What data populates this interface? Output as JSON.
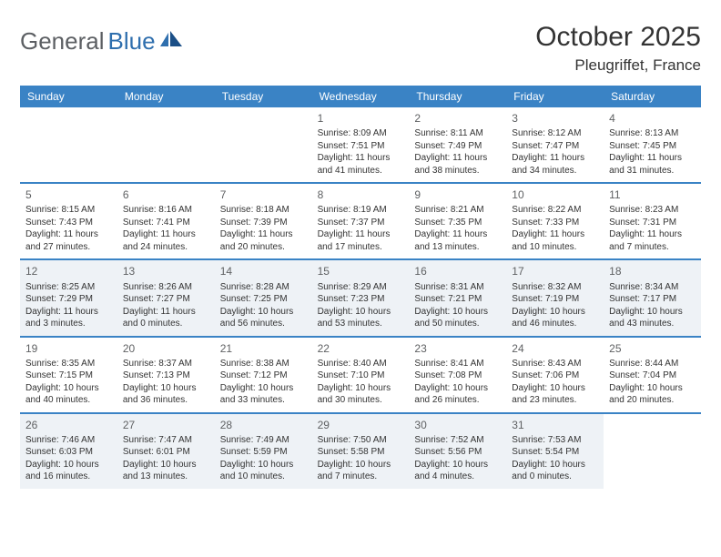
{
  "brand": {
    "part1": "General",
    "part2": "Blue"
  },
  "title": "October 2025",
  "location": "Pleugriffet, France",
  "colors": {
    "header_bg": "#3a83c5",
    "header_text": "#ffffff",
    "rule": "#3a83c5",
    "dim_bg": "#eef2f6",
    "text": "#333333",
    "logo_gray": "#5c5f63",
    "logo_blue": "#2f6fae"
  },
  "day_names": [
    "Sunday",
    "Monday",
    "Tuesday",
    "Wednesday",
    "Thursday",
    "Friday",
    "Saturday"
  ],
  "weeks": [
    [
      {
        "n": "",
        "sr": "",
        "ss": "",
        "dl1": "",
        "dl2": "",
        "empty": true
      },
      {
        "n": "",
        "sr": "",
        "ss": "",
        "dl1": "",
        "dl2": "",
        "empty": true
      },
      {
        "n": "",
        "sr": "",
        "ss": "",
        "dl1": "",
        "dl2": "",
        "empty": true
      },
      {
        "n": "1",
        "sr": "Sunrise: 8:09 AM",
        "ss": "Sunset: 7:51 PM",
        "dl1": "Daylight: 11 hours",
        "dl2": "and 41 minutes."
      },
      {
        "n": "2",
        "sr": "Sunrise: 8:11 AM",
        "ss": "Sunset: 7:49 PM",
        "dl1": "Daylight: 11 hours",
        "dl2": "and 38 minutes."
      },
      {
        "n": "3",
        "sr": "Sunrise: 8:12 AM",
        "ss": "Sunset: 7:47 PM",
        "dl1": "Daylight: 11 hours",
        "dl2": "and 34 minutes."
      },
      {
        "n": "4",
        "sr": "Sunrise: 8:13 AM",
        "ss": "Sunset: 7:45 PM",
        "dl1": "Daylight: 11 hours",
        "dl2": "and 31 minutes."
      }
    ],
    [
      {
        "n": "5",
        "sr": "Sunrise: 8:15 AM",
        "ss": "Sunset: 7:43 PM",
        "dl1": "Daylight: 11 hours",
        "dl2": "and 27 minutes."
      },
      {
        "n": "6",
        "sr": "Sunrise: 8:16 AM",
        "ss": "Sunset: 7:41 PM",
        "dl1": "Daylight: 11 hours",
        "dl2": "and 24 minutes."
      },
      {
        "n": "7",
        "sr": "Sunrise: 8:18 AM",
        "ss": "Sunset: 7:39 PM",
        "dl1": "Daylight: 11 hours",
        "dl2": "and 20 minutes."
      },
      {
        "n": "8",
        "sr": "Sunrise: 8:19 AM",
        "ss": "Sunset: 7:37 PM",
        "dl1": "Daylight: 11 hours",
        "dl2": "and 17 minutes."
      },
      {
        "n": "9",
        "sr": "Sunrise: 8:21 AM",
        "ss": "Sunset: 7:35 PM",
        "dl1": "Daylight: 11 hours",
        "dl2": "and 13 minutes."
      },
      {
        "n": "10",
        "sr": "Sunrise: 8:22 AM",
        "ss": "Sunset: 7:33 PM",
        "dl1": "Daylight: 11 hours",
        "dl2": "and 10 minutes."
      },
      {
        "n": "11",
        "sr": "Sunrise: 8:23 AM",
        "ss": "Sunset: 7:31 PM",
        "dl1": "Daylight: 11 hours",
        "dl2": "and 7 minutes."
      }
    ],
    [
      {
        "n": "12",
        "sr": "Sunrise: 8:25 AM",
        "ss": "Sunset: 7:29 PM",
        "dl1": "Daylight: 11 hours",
        "dl2": "and 3 minutes.",
        "dim": true
      },
      {
        "n": "13",
        "sr": "Sunrise: 8:26 AM",
        "ss": "Sunset: 7:27 PM",
        "dl1": "Daylight: 11 hours",
        "dl2": "and 0 minutes.",
        "dim": true
      },
      {
        "n": "14",
        "sr": "Sunrise: 8:28 AM",
        "ss": "Sunset: 7:25 PM",
        "dl1": "Daylight: 10 hours",
        "dl2": "and 56 minutes.",
        "dim": true
      },
      {
        "n": "15",
        "sr": "Sunrise: 8:29 AM",
        "ss": "Sunset: 7:23 PM",
        "dl1": "Daylight: 10 hours",
        "dl2": "and 53 minutes.",
        "dim": true
      },
      {
        "n": "16",
        "sr": "Sunrise: 8:31 AM",
        "ss": "Sunset: 7:21 PM",
        "dl1": "Daylight: 10 hours",
        "dl2": "and 50 minutes.",
        "dim": true
      },
      {
        "n": "17",
        "sr": "Sunrise: 8:32 AM",
        "ss": "Sunset: 7:19 PM",
        "dl1": "Daylight: 10 hours",
        "dl2": "and 46 minutes.",
        "dim": true
      },
      {
        "n": "18",
        "sr": "Sunrise: 8:34 AM",
        "ss": "Sunset: 7:17 PM",
        "dl1": "Daylight: 10 hours",
        "dl2": "and 43 minutes.",
        "dim": true
      }
    ],
    [
      {
        "n": "19",
        "sr": "Sunrise: 8:35 AM",
        "ss": "Sunset: 7:15 PM",
        "dl1": "Daylight: 10 hours",
        "dl2": "and 40 minutes."
      },
      {
        "n": "20",
        "sr": "Sunrise: 8:37 AM",
        "ss": "Sunset: 7:13 PM",
        "dl1": "Daylight: 10 hours",
        "dl2": "and 36 minutes."
      },
      {
        "n": "21",
        "sr": "Sunrise: 8:38 AM",
        "ss": "Sunset: 7:12 PM",
        "dl1": "Daylight: 10 hours",
        "dl2": "and 33 minutes."
      },
      {
        "n": "22",
        "sr": "Sunrise: 8:40 AM",
        "ss": "Sunset: 7:10 PM",
        "dl1": "Daylight: 10 hours",
        "dl2": "and 30 minutes."
      },
      {
        "n": "23",
        "sr": "Sunrise: 8:41 AM",
        "ss": "Sunset: 7:08 PM",
        "dl1": "Daylight: 10 hours",
        "dl2": "and 26 minutes."
      },
      {
        "n": "24",
        "sr": "Sunrise: 8:43 AM",
        "ss": "Sunset: 7:06 PM",
        "dl1": "Daylight: 10 hours",
        "dl2": "and 23 minutes."
      },
      {
        "n": "25",
        "sr": "Sunrise: 8:44 AM",
        "ss": "Sunset: 7:04 PM",
        "dl1": "Daylight: 10 hours",
        "dl2": "and 20 minutes."
      }
    ],
    [
      {
        "n": "26",
        "sr": "Sunrise: 7:46 AM",
        "ss": "Sunset: 6:03 PM",
        "dl1": "Daylight: 10 hours",
        "dl2": "and 16 minutes.",
        "dim": true
      },
      {
        "n": "27",
        "sr": "Sunrise: 7:47 AM",
        "ss": "Sunset: 6:01 PM",
        "dl1": "Daylight: 10 hours",
        "dl2": "and 13 minutes.",
        "dim": true
      },
      {
        "n": "28",
        "sr": "Sunrise: 7:49 AM",
        "ss": "Sunset: 5:59 PM",
        "dl1": "Daylight: 10 hours",
        "dl2": "and 10 minutes.",
        "dim": true
      },
      {
        "n": "29",
        "sr": "Sunrise: 7:50 AM",
        "ss": "Sunset: 5:58 PM",
        "dl1": "Daylight: 10 hours",
        "dl2": "and 7 minutes.",
        "dim": true
      },
      {
        "n": "30",
        "sr": "Sunrise: 7:52 AM",
        "ss": "Sunset: 5:56 PM",
        "dl1": "Daylight: 10 hours",
        "dl2": "and 4 minutes.",
        "dim": true
      },
      {
        "n": "31",
        "sr": "Sunrise: 7:53 AM",
        "ss": "Sunset: 5:54 PM",
        "dl1": "Daylight: 10 hours",
        "dl2": "and 0 minutes.",
        "dim": true
      },
      {
        "n": "",
        "sr": "",
        "ss": "",
        "dl1": "",
        "dl2": "",
        "empty": true,
        "dim": true
      }
    ]
  ]
}
